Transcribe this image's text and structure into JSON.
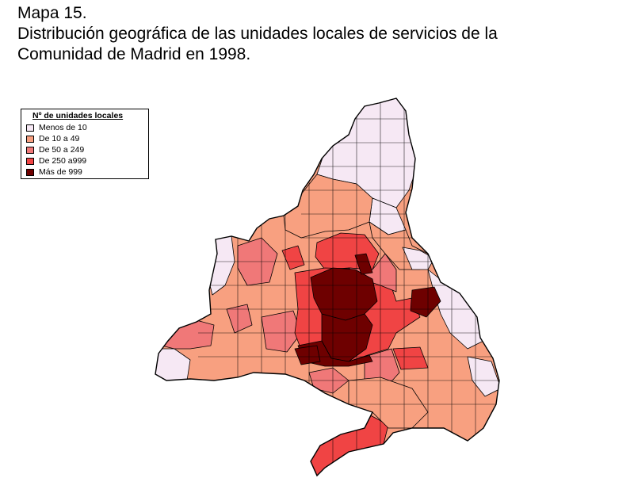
{
  "title": {
    "line1": "Mapa 15.",
    "line2": "Distribución geográfica de las unidades locales de servicios de la",
    "line3": "Comunidad de Madrid en 1998."
  },
  "legend": {
    "title": "Nº de unidades locales",
    "items": [
      {
        "label": "Menos de 10",
        "color": "#f6e8f4"
      },
      {
        "label": "De 10 a 49",
        "color": "#f8a080"
      },
      {
        "label": "De 50 a 249",
        "color": "#f07878"
      },
      {
        "label": "De 250 a999",
        "color": "#f04444"
      },
      {
        "label": "Más de 999",
        "color": "#6e0000"
      }
    ]
  },
  "colors": {
    "outline": "#000000",
    "background": "#ffffff"
  }
}
